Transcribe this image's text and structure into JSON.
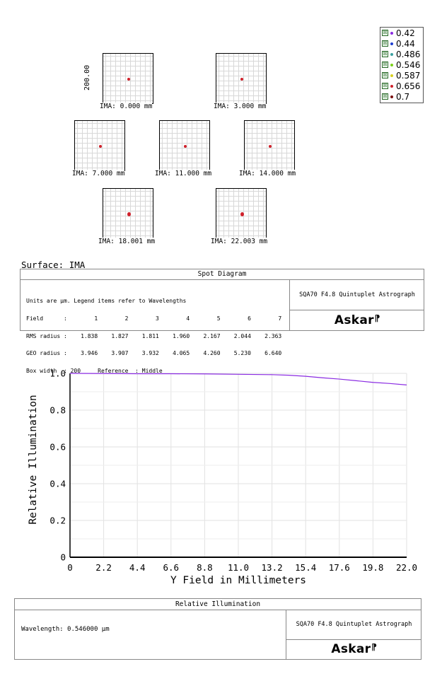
{
  "spot": {
    "y_scale_label": "200.00",
    "fields": [
      {
        "label": "IMA: 0.000 mm"
      },
      {
        "label": "IMA: 3.000 mm"
      },
      {
        "label": "IMA: 7.000 mm"
      },
      {
        "label": "IMA: 11.000 mm"
      },
      {
        "label": "IMA: 14.000 mm"
      },
      {
        "label": "IMA: 18.001 mm"
      },
      {
        "label": "IMA: 22.003 mm"
      }
    ],
    "legend": [
      {
        "label": "0.42",
        "color": "#8a2be2"
      },
      {
        "label": "0.44",
        "color": "#1f3fd0"
      },
      {
        "label": "0.486",
        "color": "#3aa0a0"
      },
      {
        "label": "0.546",
        "color": "#7cd11a"
      },
      {
        "label": "0.587",
        "color": "#d8d020"
      },
      {
        "label": "0.656",
        "color": "#d0202a"
      },
      {
        "label": "0.7",
        "color": "#7a1010"
      }
    ],
    "surface_label": "Surface: IMA",
    "panel_title": "Spot Diagram",
    "info": {
      "line1": "Units are µm. Legend items refer to Wavelengths",
      "header": [
        "Field",
        ":",
        "1",
        "2",
        "3",
        "4",
        "5",
        "6",
        "7"
      ],
      "rms": [
        "RMS radius",
        ":",
        "1.838",
        "1.827",
        "1.811",
        "1.960",
        "2.167",
        "2.044",
        "2.363"
      ],
      "geo": [
        "GEO radius",
        ":",
        "3.946",
        "3.907",
        "3.932",
        "4.065",
        "4.260",
        "5.230",
        "6.640"
      ],
      "box_width": "Box width  : 200     Reference  : Middle"
    },
    "system": "SQA70 F4.8 Quintuplet Astrograph",
    "brand": "Askar"
  },
  "chart_data": {
    "type": "line",
    "title": "",
    "xlabel": "Y Field in Millimeters",
    "ylabel": "Relative Illumination",
    "xlim": [
      0,
      22.0
    ],
    "ylim": [
      0,
      1.0
    ],
    "xticks": [
      "0",
      "2.2",
      "4.4",
      "6.6",
      "8.8",
      "11.0",
      "13.2",
      "15.4",
      "17.6",
      "19.8",
      "22.0"
    ],
    "yticks": [
      "0",
      "0.2",
      "0.4",
      "0.6",
      "0.8",
      "1.0"
    ],
    "grid": true,
    "series": [
      {
        "color": "#8a2be2",
        "x": [
          0,
          2.2,
          4.4,
          6.6,
          8.8,
          11.0,
          13.2,
          14.3,
          15.4,
          16.5,
          17.6,
          18.7,
          19.8,
          20.9,
          22.0
        ],
        "y": [
          1.0,
          0.999,
          0.998,
          0.998,
          0.997,
          0.995,
          0.993,
          0.99,
          0.984,
          0.976,
          0.969,
          0.96,
          0.951,
          0.945,
          0.937
        ]
      }
    ]
  },
  "ri_panel": {
    "title": "Relative Illumination",
    "wavelength": "Wavelength: 0.546000 µm",
    "system": "SQA70 F4.8 Quintuplet Astrograph",
    "brand": "Askar"
  }
}
